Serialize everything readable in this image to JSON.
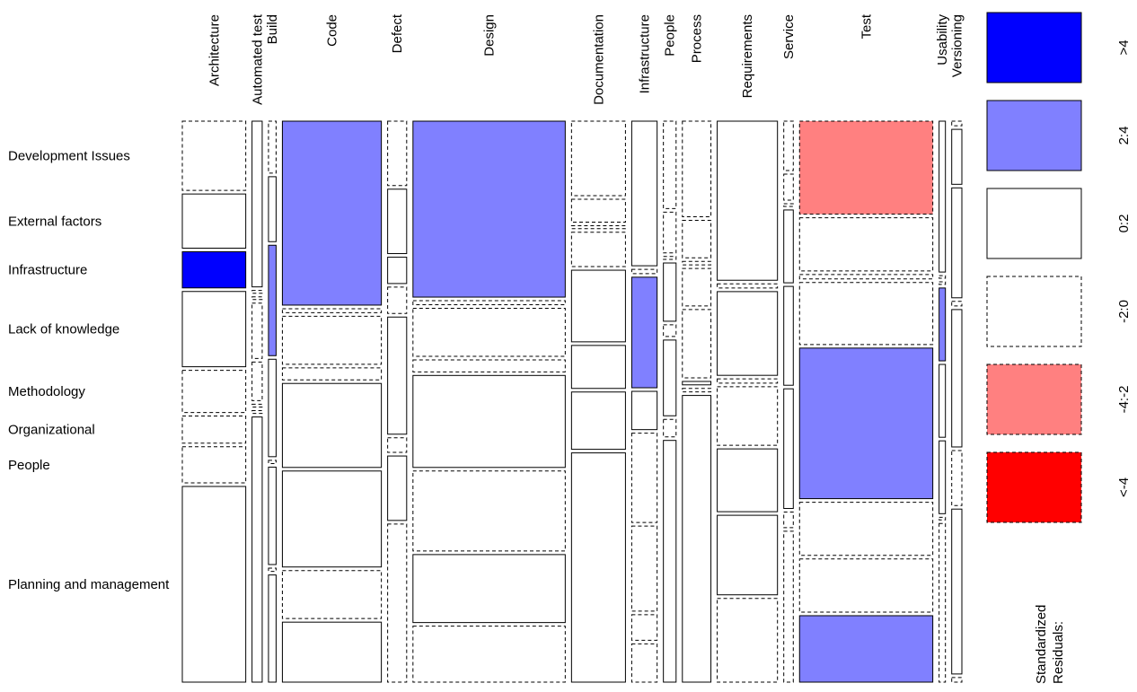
{
  "chart_data": {
    "type": "mosaic",
    "title": "",
    "column_variable_categories": [
      "Architecture",
      "Automated test",
      "Build",
      "Code",
      "Defect",
      "Design",
      "Documentation",
      "Infrastructure",
      "People",
      "Process",
      "Requirements",
      "Service",
      "Test",
      "Usability",
      "Versioning"
    ],
    "row_variable_categories": [
      "Development Issues",
      "External factors",
      "Infrastructure",
      "Lack of knowledge",
      "Methodology",
      "Organizational",
      "People",
      "Planning and management"
    ],
    "column_proportions": [
      0.1,
      0.016,
      0.012,
      0.156,
      0.03,
      0.24,
      0.085,
      0.04,
      0.02,
      0.045,
      0.095,
      0.015,
      0.21,
      0.01,
      0.016
    ],
    "row_proportions": {
      "Architecture": [
        0.115,
        0.09,
        0.06,
        0.125,
        0.07,
        0.045,
        0.06,
        0.325
      ],
      "Automated test": [
        0.3,
        0.005,
        0.005,
        0.1,
        0.07,
        0.005,
        0.005,
        0.48
      ],
      "Build": [
        0.08,
        0.1,
        0.17,
        0.15,
        0.005,
        0.15,
        0.005,
        0.165
      ],
      "Code": [
        0.23,
        0.005,
        0.06,
        0.015,
        0.105,
        0.12,
        0.06,
        0.075
      ],
      "Defect": [
        0.11,
        0.11,
        0.045,
        0.045,
        0.2,
        0.025,
        0.11,
        0.27
      ],
      "Design": [
        0.22,
        0.005,
        0.06,
        0.015,
        0.115,
        0.1,
        0.085,
        0.07
      ],
      "Documentation": [
        0.13,
        0.04,
        0.005,
        0.06,
        0.125,
        0.075,
        0.1,
        0.4
      ],
      "Infrastructure": [
        0.17,
        0.005,
        0.13,
        0.045,
        0.105,
        0.1,
        0.03,
        0.045
      ],
      "People": [
        0.15,
        0.07,
        0.005,
        0.1,
        0.02,
        0.13,
        0.03,
        0.415
      ],
      "Process": [
        0.14,
        0.055,
        0.005,
        0.055,
        0.1,
        0.005,
        0.005,
        0.42
      ],
      "Requirements": [
        0.19,
        0.005,
        0.1,
        0.005,
        0.07,
        0.075,
        0.095,
        0.1
      ],
      "Service": [
        0.095,
        0.05,
        0.005,
        0.14,
        0.19,
        0.23,
        0.03,
        0.29
      ],
      "Test": [
        0.105,
        0.06,
        0.005,
        0.07,
        0.17,
        0.06,
        0.06,
        0.075
      ],
      "Usability": [
        0.29,
        0.005,
        0.005,
        0.14,
        0.14,
        0.14,
        0.005,
        0.305
      ],
      "Versioning": [
        0.005,
        0.06,
        0.12,
        0.005,
        0.15,
        0.06,
        0.18,
        0.005
      ]
    },
    "standardized_residuals": {
      "Architecture": [
        "-2:0",
        "0:2",
        ">4",
        "0:2",
        "-2:0",
        "-2:0",
        "-2:0",
        "0:2"
      ],
      "Automated test": [
        "0:2",
        "-2:0",
        "-2:0",
        "-2:0",
        "-2:0",
        "-2:0",
        "-2:0",
        "0:2"
      ],
      "Build": [
        "-2:0",
        "0:2",
        "2:4",
        "0:2",
        "-2:0",
        "0:2",
        "-2:0",
        "0:2"
      ],
      "Code": [
        "2:4",
        "-2:0",
        "-2:0",
        "-2:0",
        "0:2",
        "0:2",
        "-2:0",
        "0:2"
      ],
      "Defect": [
        "-2:0",
        "0:2",
        "0:2",
        "-2:0",
        "0:2",
        "-2:0",
        "0:2",
        "-2:0"
      ],
      "Design": [
        "2:4",
        "-2:0",
        "-2:0",
        "-2:0",
        "0:2",
        "-2:0",
        "0:2",
        "-2:0"
      ],
      "Documentation": [
        "-2:0",
        "-2:0",
        "-2:0",
        "-2:0",
        "0:2",
        "0:2",
        "0:2",
        "0:2"
      ],
      "Infrastructure": [
        "0:2",
        "-2:0",
        "2:4",
        "0:2",
        "-2:0",
        "-2:0",
        "-2:0",
        "-2:0"
      ],
      "People": [
        "-2:0",
        "-2:0",
        "-2:0",
        "0:2",
        "-2:0",
        "0:2",
        "-2:0",
        "0:2"
      ],
      "Process": [
        "-2:0",
        "-2:0",
        "-2:0",
        "-2:0",
        "-2:0",
        "0:2",
        "-2:0",
        "0:2"
      ],
      "Requirements": [
        "0:2",
        "-2:0",
        "0:2",
        "-2:0",
        "-2:0",
        "0:2",
        "0:2",
        "-2:0"
      ],
      "Service": [
        "-2:0",
        "-2:0",
        "-2:0",
        "0:2",
        "0:2",
        "0:2",
        "-2:0",
        "-2:0"
      ],
      "Test": [
        "-4:-2",
        "-2:0",
        "-2:0",
        "-2:0",
        "2:4",
        "-2:0",
        "-2:0",
        "2:4"
      ],
      "Usability": [
        "0:2",
        "-2:0",
        "-2:0",
        "2:4",
        "0:2",
        "0:2",
        "-2:0",
        "-2:0"
      ],
      "Versioning": [
        "-2:0",
        "0:2",
        "0:2",
        "-2:0",
        "0:2",
        "-2:0",
        "0:2",
        "-2:0"
      ]
    },
    "legend": {
      "title_line1": "Standardized",
      "title_line2": "Residuals:",
      "position": "right",
      "items": [
        {
          "label": ">4",
          "fill": "#0000FF",
          "border": "solid"
        },
        {
          "label": "2:4",
          "fill": "#8080FF",
          "border": "solid"
        },
        {
          "label": "0:2",
          "fill": "#FFFFFF",
          "border": "solid"
        },
        {
          "label": "-2:0",
          "fill": "#FFFFFF",
          "border": "dashed"
        },
        {
          "label": "-4:-2",
          "fill": "#FF8080",
          "border": "dashed"
        },
        {
          "label": "<-4",
          "fill": "#FF0000",
          "border": "dashed"
        }
      ]
    }
  }
}
